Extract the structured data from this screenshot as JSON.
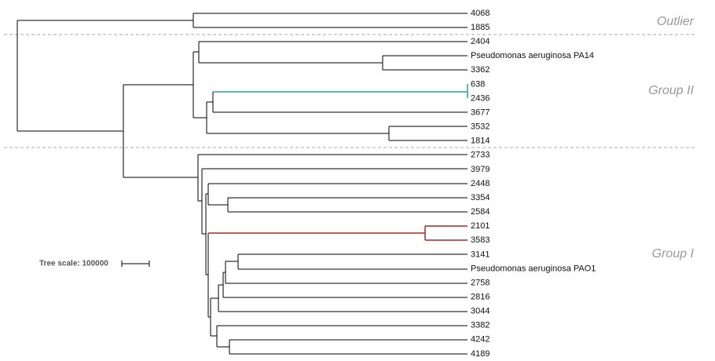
{
  "leaves": [
    "4068",
    "1885",
    "2404",
    "Pseudomonas aeruginosa PA14",
    "3362",
    "638",
    "2436",
    "3677",
    "3532",
    "1814",
    "2733",
    "3979",
    "2448",
    "3354",
    "2584",
    "2101",
    "3583",
    "3141",
    "Pseudomonas aeruginosa PAO1",
    "2758",
    "2816",
    "3044",
    "3382",
    "4242",
    "4189"
  ],
  "groups": [
    "Outlier",
    "Group II",
    "Group I"
  ],
  "tree_scale": "Tree scale: 100000"
}
